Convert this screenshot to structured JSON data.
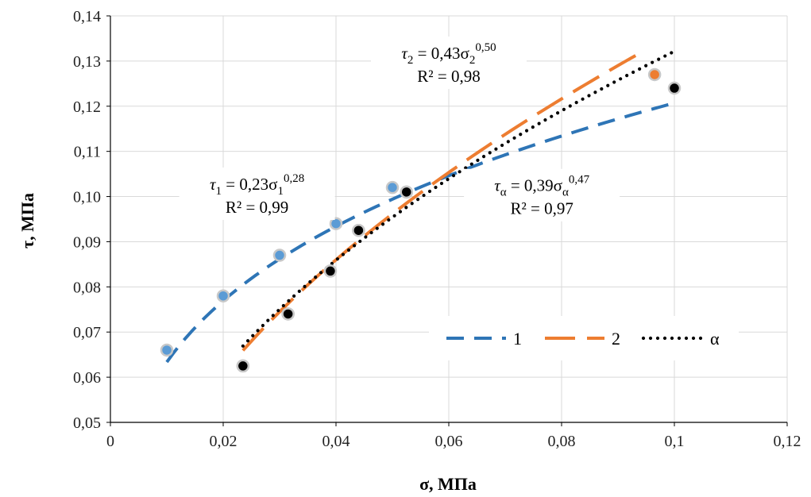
{
  "chart_data": {
    "type": "scatter",
    "xlabel": "σ, МПа",
    "ylabel": "τ, МПа",
    "xlim": [
      0,
      0.12
    ],
    "ylim": [
      0.05,
      0.14
    ],
    "grid": true,
    "legend_position": "right",
    "x_ticks": [
      "0",
      "0,02",
      "0,04",
      "0,06",
      "0,08",
      "0,1",
      "0,12"
    ],
    "y_ticks": [
      "0,05",
      "0,06",
      "0,07",
      "0,08",
      "0,09",
      "0,10",
      "0,11",
      "0,12",
      "0,13",
      "0,14"
    ],
    "series": [
      {
        "name": "1",
        "color": "#2e75b6",
        "line_style": "dashed",
        "marker_color": "#5b9bd5",
        "points": [
          [
            0.01,
            0.066
          ],
          [
            0.02,
            0.078
          ],
          [
            0.03,
            0.087
          ],
          [
            0.04,
            0.094
          ],
          [
            0.05,
            0.102
          ]
        ],
        "trend": {
          "coef": 0.23,
          "exp": 0.28,
          "x_from": 0.01,
          "x_to": 0.1
        }
      },
      {
        "name": "2",
        "color": "#ed7d31",
        "line_style": "long-dashed",
        "marker_color": "#ed7d31",
        "points": [
          [
            0.0235,
            0.0625
          ],
          [
            0.0315,
            0.074
          ],
          [
            0.039,
            0.0835
          ],
          [
            0.044,
            0.0925
          ],
          [
            0.0525,
            0.101
          ],
          [
            0.0965,
            0.127
          ]
        ],
        "trend": {
          "coef": 0.43,
          "exp": 0.5,
          "x_from": 0.0235,
          "x_to": 0.094
        }
      },
      {
        "name": "α",
        "color": "#000000",
        "line_style": "dotted",
        "marker_color": "#000000",
        "points": [
          [
            0.0235,
            0.0625
          ],
          [
            0.0315,
            0.074
          ],
          [
            0.039,
            0.0835
          ],
          [
            0.044,
            0.0925
          ],
          [
            0.0525,
            0.101
          ],
          [
            0.1,
            0.124
          ]
        ],
        "trend": {
          "coef": 0.39,
          "exp": 0.47,
          "x_from": 0.0235,
          "x_to": 0.1
        }
      }
    ],
    "annotations": [
      {
        "series": "1",
        "label_base": "τ",
        "label_sub": "1",
        "label_mid": " = 0,23σ",
        "label_sub2": "1",
        "label_sup": "0,28",
        "r2": "R² = 0,99",
        "at": [
          0.026,
          0.1015
        ]
      },
      {
        "series": "2",
        "label_base": "τ",
        "label_sub": "2",
        "label_mid": " = 0,43σ",
        "label_sub2": "2",
        "label_sup": "0,50",
        "r2": "R² = 0,98",
        "at": [
          0.06,
          0.1305
        ]
      },
      {
        "series": "α",
        "label_base": "τ",
        "label_sub": "α",
        "label_mid": " = 0,39σ",
        "label_sub2": "α",
        "label_sup": "0,47",
        "r2": "R² = 0,97",
        "at": [
          0.0765,
          0.1012
        ]
      }
    ]
  }
}
